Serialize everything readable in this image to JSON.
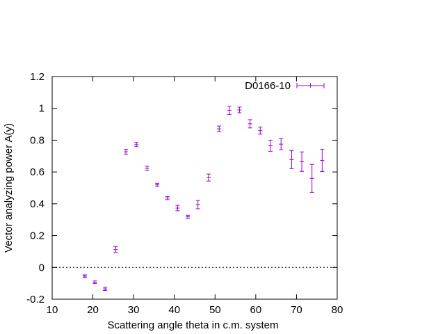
{
  "chart_data": {
    "type": "scatter",
    "title": "",
    "xlabel": "Scattering angle theta in c.m. system",
    "ylabel": "Vector analyzing power A(y)",
    "xlim": [
      10,
      80
    ],
    "ylim": [
      -0.2,
      1.2
    ],
    "x_ticks": [
      "10",
      "20",
      "30",
      "40",
      "50",
      "60",
      "70",
      "80"
    ],
    "y_ticks": [
      "-0.2",
      "0",
      "0.2",
      "0.4",
      "0.6",
      "0.8",
      "1",
      "1.2"
    ],
    "zero_line": "dotted",
    "grid": false,
    "legend_position": "top-right",
    "series": [
      {
        "name": "D0166-10",
        "style": "errorbars",
        "color": "#9400d3",
        "points": [
          {
            "x": 18.0,
            "y": -0.055,
            "err": 0.008
          },
          {
            "x": 20.5,
            "y": -0.093,
            "err": 0.008
          },
          {
            "x": 23.0,
            "y": -0.135,
            "err": 0.01
          },
          {
            "x": 25.6,
            "y": 0.112,
            "err": 0.018
          },
          {
            "x": 28.1,
            "y": 0.727,
            "err": 0.016
          },
          {
            "x": 30.7,
            "y": 0.772,
            "err": 0.013
          },
          {
            "x": 33.3,
            "y": 0.623,
            "err": 0.013
          },
          {
            "x": 35.8,
            "y": 0.519,
            "err": 0.01
          },
          {
            "x": 38.3,
            "y": 0.436,
            "err": 0.01
          },
          {
            "x": 40.8,
            "y": 0.373,
            "err": 0.017
          },
          {
            "x": 43.3,
            "y": 0.318,
            "err": 0.01
          },
          {
            "x": 45.8,
            "y": 0.395,
            "err": 0.026
          },
          {
            "x": 48.4,
            "y": 0.565,
            "err": 0.022
          },
          {
            "x": 51.0,
            "y": 0.871,
            "err": 0.018
          },
          {
            "x": 53.5,
            "y": 0.988,
            "err": 0.026
          },
          {
            "x": 56.0,
            "y": 0.99,
            "err": 0.018
          },
          {
            "x": 58.6,
            "y": 0.903,
            "err": 0.026
          },
          {
            "x": 61.1,
            "y": 0.86,
            "err": 0.022
          },
          {
            "x": 63.6,
            "y": 0.765,
            "err": 0.035
          },
          {
            "x": 66.2,
            "y": 0.775,
            "err": 0.035
          },
          {
            "x": 68.8,
            "y": 0.678,
            "err": 0.057
          },
          {
            "x": 71.3,
            "y": 0.665,
            "err": 0.061
          },
          {
            "x": 73.8,
            "y": 0.56,
            "err": 0.088
          },
          {
            "x": 76.3,
            "y": 0.673,
            "err": 0.07
          }
        ]
      }
    ]
  }
}
